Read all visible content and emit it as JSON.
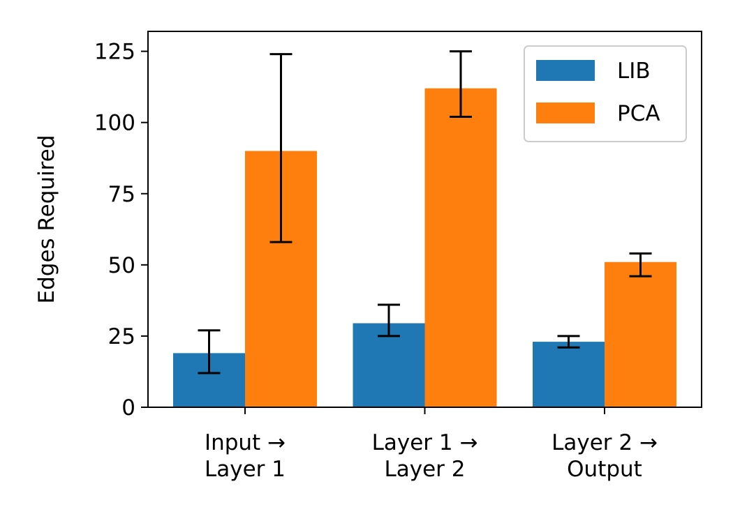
{
  "chart_data": {
    "type": "bar",
    "title": "",
    "xlabel": "",
    "ylabel": "Edges Required",
    "ylim": [
      0,
      132
    ],
    "yticks": [
      0,
      25,
      50,
      75,
      100,
      125
    ],
    "categories": [
      [
        "Input →",
        "Layer 1"
      ],
      [
        "Layer 1 →",
        "Layer 2"
      ],
      [
        "Layer 2 →",
        "Output"
      ]
    ],
    "series": [
      {
        "name": "LIB",
        "color": "#1f77b4",
        "values": [
          19,
          29.5,
          23
        ],
        "err_low": [
          12,
          25,
          21
        ],
        "err_high": [
          27,
          36,
          25
        ]
      },
      {
        "name": "PCA",
        "color": "#ff7f0e",
        "values": [
          90,
          112,
          51
        ],
        "err_low": [
          58,
          102,
          46
        ],
        "err_high": [
          124,
          125,
          54
        ]
      }
    ],
    "legend_position": "top-right",
    "grid": false
  }
}
